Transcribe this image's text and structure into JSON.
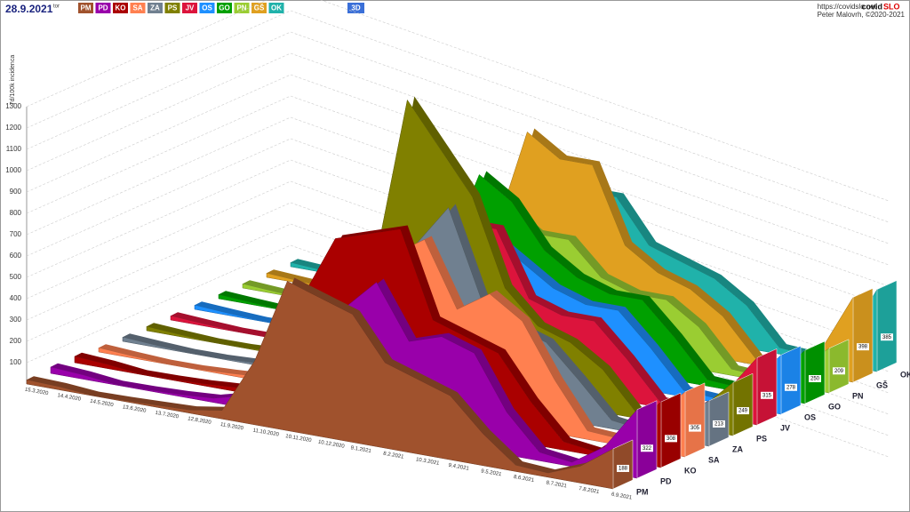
{
  "chart_data": {
    "type": "area",
    "title": "28.9.2021",
    "subtitle": "tor",
    "view_button": "3D",
    "url": "https://covidslo.net",
    "brand_prefix": "covid",
    "brand_suffix": "SLO",
    "credit": "Peter Malovrh, ©2020-2021",
    "y_label": "7d/100k incidenca",
    "categories": [
      "15.3.2020",
      "14.4.2020",
      "14.5.2020",
      "13.6.2020",
      "13.7.2020",
      "12.8.2020",
      "11.9.2020",
      "11.10.2020",
      "10.11.2020",
      "10.12.2020",
      "9.1.2021",
      "8.2.2021",
      "10.3.2021",
      "9.4.2021",
      "9.5.2021",
      "8.6.2021",
      "8.7.2021",
      "7.8.2021",
      "6.9.2021"
    ],
    "ylim": [
      0,
      1300
    ],
    "yticks": [
      100,
      200,
      300,
      400,
      500,
      600,
      700,
      800,
      900,
      1000,
      1100,
      1200,
      1300
    ],
    "grid": true,
    "series": [
      {
        "name": "PM",
        "color": "#a0522d",
        "values": [
          20,
          15,
          2,
          5,
          10,
          15,
          40,
          300,
          700,
          650,
          600,
          400,
          350,
          300,
          150,
          30,
          20,
          80,
          188
        ]
      },
      {
        "name": "PD",
        "color": "#9900aa",
        "values": [
          30,
          20,
          3,
          5,
          10,
          20,
          60,
          400,
          500,
          550,
          700,
          450,
          500,
          450,
          200,
          40,
          20,
          120,
          322
        ]
      },
      {
        "name": "KO",
        "color": "#aa0000",
        "values": [
          30,
          20,
          3,
          5,
          10,
          20,
          80,
          500,
          800,
          850,
          900,
          500,
          450,
          400,
          200,
          40,
          20,
          150,
          308
        ]
      },
      {
        "name": "SA",
        "color": "#ff8050",
        "values": [
          20,
          10,
          2,
          3,
          10,
          20,
          50,
          400,
          700,
          700,
          800,
          500,
          600,
          500,
          250,
          40,
          30,
          150,
          305
        ]
      },
      {
        "name": "ZA",
        "color": "#708090",
        "values": [
          20,
          10,
          2,
          3,
          10,
          20,
          60,
          400,
          600,
          700,
          900,
          500,
          400,
          350,
          200,
          40,
          20,
          100,
          213
        ]
      },
      {
        "name": "PS",
        "color": "#808000",
        "values": [
          20,
          10,
          2,
          3,
          10,
          20,
          60,
          500,
          1300,
          1100,
          900,
          500,
          350,
          300,
          200,
          30,
          20,
          100,
          249
        ]
      },
      {
        "name": "JV",
        "color": "#dc143c",
        "values": [
          20,
          10,
          2,
          3,
          10,
          20,
          50,
          400,
          800,
          700,
          700,
          400,
          350,
          350,
          200,
          30,
          20,
          120,
          315
        ]
      },
      {
        "name": "OS",
        "color": "#1e90ff",
        "values": [
          20,
          10,
          2,
          3,
          10,
          20,
          50,
          300,
          700,
          600,
          500,
          400,
          350,
          350,
          200,
          30,
          20,
          100,
          278
        ]
      },
      {
        "name": "GO",
        "color": "#00a000",
        "values": [
          20,
          10,
          2,
          3,
          10,
          20,
          60,
          400,
          800,
          700,
          500,
          400,
          350,
          350,
          200,
          30,
          20,
          80,
          250
        ]
      },
      {
        "name": "PN",
        "color": "#9acd32",
        "values": [
          20,
          10,
          2,
          3,
          10,
          20,
          60,
          400,
          600,
          500,
          500,
          350,
          300,
          300,
          200,
          30,
          20,
          80,
          209
        ]
      },
      {
        "name": "GŠ",
        "color": "#e0a020",
        "values": [
          20,
          10,
          2,
          3,
          10,
          20,
          60,
          400,
          900,
          800,
          800,
          450,
          350,
          300,
          200,
          30,
          20,
          120,
          398
        ]
      },
      {
        "name": "OK",
        "color": "#20b2aa",
        "values": [
          20,
          10,
          2,
          3,
          10,
          20,
          60,
          300,
          700,
          600,
          600,
          400,
          350,
          300,
          200,
          30,
          20,
          100,
          385
        ]
      }
    ]
  }
}
